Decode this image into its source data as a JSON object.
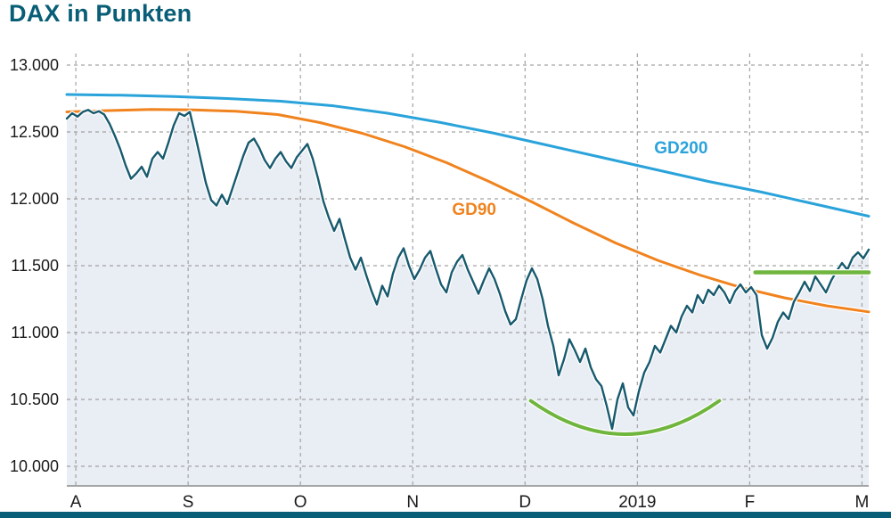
{
  "chart_data": {
    "type": "line",
    "title": "DAX in Punkten",
    "x_domain": [
      -0.08,
      7.06
    ],
    "y_domain": [
      10000,
      13000
    ],
    "grid": true,
    "colors": {
      "title": "#085e76",
      "footer_bar": "#085e76",
      "grid": "#a3a3a3",
      "axis": "#8c8c8c",
      "text": "#1a1a1a",
      "dax": "#175a6e",
      "dax_fill": "#e9edf4",
      "gd200": "#2aa3db",
      "gd90": "#f0831e",
      "green": "#6fb53e"
    },
    "y_ticks": [
      {
        "v": 13000,
        "label": "13.000"
      },
      {
        "v": 12500,
        "label": "12.500"
      },
      {
        "v": 12000,
        "label": "12.000"
      },
      {
        "v": 11500,
        "label": "11.500"
      },
      {
        "v": 11000,
        "label": "11.000"
      },
      {
        "v": 10500,
        "label": "10.500"
      },
      {
        "v": 10000,
        "label": "10.000"
      }
    ],
    "x_ticks": [
      {
        "m": 0,
        "label": "A"
      },
      {
        "m": 1,
        "label": "S"
      },
      {
        "m": 2,
        "label": "O"
      },
      {
        "m": 3,
        "label": "N"
      },
      {
        "m": 4,
        "label": "D"
      },
      {
        "m": 5,
        "label": "2019"
      },
      {
        "m": 6,
        "label": "F"
      },
      {
        "m": 7,
        "label": "M"
      }
    ],
    "series": [
      {
        "name": "GD200",
        "color": "#2aa3db",
        "width": 3,
        "values": [
          12780,
          12775,
          12765,
          12750,
          12730,
          12695,
          12640,
          12570,
          12490,
          12400,
          12310,
          12220,
          12130,
          12050,
          11960,
          11870
        ]
      },
      {
        "name": "GD90",
        "color": "#f0831e",
        "width": 3,
        "values": [
          12650,
          12660,
          12668,
          12665,
          12655,
          12630,
          12570,
          12490,
          12390,
          12270,
          12130,
          11980,
          11820,
          11670,
          11540,
          11430,
          11335,
          11260,
          11200,
          11155
        ]
      },
      {
        "name": "DAX",
        "color": "#175a6e",
        "width": 2.4,
        "fill": "#e9edf4",
        "values": [
          12600,
          12640,
          12615,
          12650,
          12665,
          12640,
          12655,
          12630,
          12560,
          12470,
          12370,
          12250,
          12150,
          12190,
          12240,
          12165,
          12300,
          12350,
          12300,
          12420,
          12550,
          12640,
          12620,
          12650,
          12480,
          12300,
          12120,
          11990,
          11950,
          12030,
          11960,
          12080,
          12200,
          12320,
          12420,
          12450,
          12380,
          12290,
          12230,
          12300,
          12350,
          12280,
          12230,
          12310,
          12360,
          12410,
          12300,
          12150,
          11980,
          11860,
          11760,
          11850,
          11700,
          11560,
          11470,
          11560,
          11430,
          11310,
          11210,
          11350,
          11270,
          11440,
          11560,
          11630,
          11500,
          11400,
          11470,
          11560,
          11610,
          11480,
          11360,
          11300,
          11450,
          11530,
          11580,
          11470,
          11380,
          11290,
          11390,
          11480,
          11400,
          11290,
          11160,
          11060,
          11100,
          11250,
          11390,
          11480,
          11400,
          11250,
          11050,
          10900,
          10680,
          10800,
          10950,
          10870,
          10780,
          10880,
          10740,
          10650,
          10600,
          10450,
          10280,
          10500,
          10620,
          10440,
          10380,
          10560,
          10700,
          10780,
          10900,
          10850,
          10950,
          11050,
          11000,
          11120,
          11200,
          11150,
          11280,
          11220,
          11320,
          11280,
          11350,
          11300,
          11220,
          11310,
          11360,
          11300,
          11340,
          11280,
          10980,
          10880,
          10960,
          11080,
          11150,
          11100,
          11230,
          11300,
          11380,
          11310,
          11420,
          11360,
          11300,
          11390,
          11460,
          11520,
          11470,
          11560,
          11600,
          11555,
          11620
        ]
      }
    ],
    "labels": [
      {
        "text": "GD200",
        "m": 5.15,
        "v": 12340,
        "color": "#2aa3db"
      },
      {
        "text": "GD90",
        "m": 3.35,
        "v": 11880,
        "color": "#f0831e"
      }
    ],
    "annotations": [
      {
        "name": "resistance-line",
        "kind": "hline",
        "m1": 6.05,
        "m2": 7.06,
        "v": 11450,
        "color": "#6fb53e",
        "width": 4.5
      },
      {
        "name": "bottoming-arc",
        "kind": "arc",
        "m1": 4.05,
        "m2": 5.73,
        "v_end": 10490,
        "v_ctrl": 9990,
        "color": "#6fb53e",
        "width": 4
      }
    ]
  }
}
